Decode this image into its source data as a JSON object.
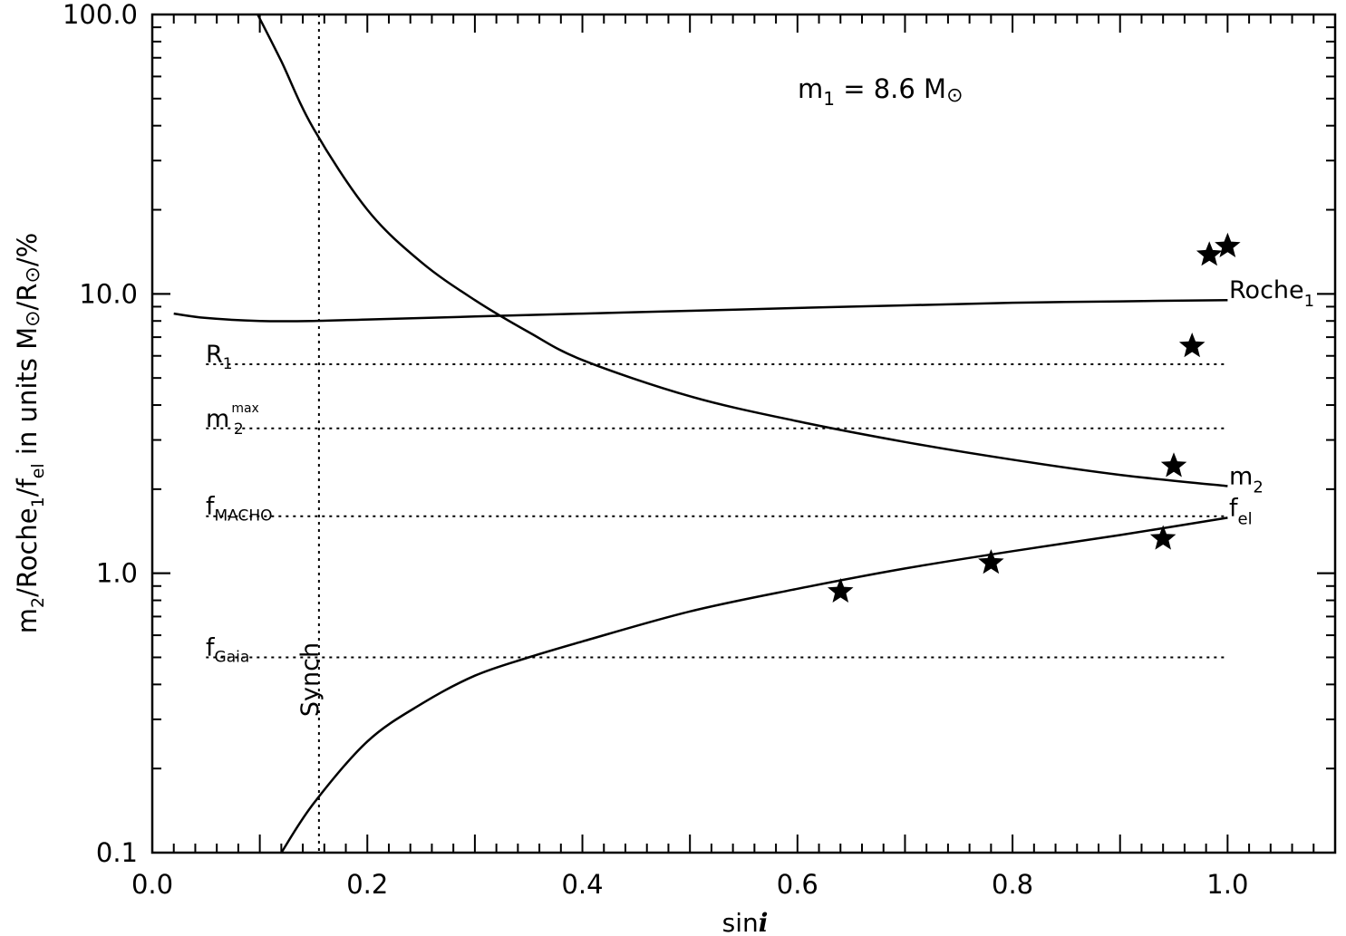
{
  "chart_data": {
    "type": "line",
    "xlabel": "sin",
    "xlabel_italic": "i",
    "ylabel_parts": [
      "m",
      "2",
      "/Roche",
      "1",
      "/f",
      "el",
      " in units M",
      "⊙",
      "/R",
      "⊙",
      "/%"
    ],
    "annotation": {
      "m": "m",
      "sub": "1",
      "rest": " = 8.6 M",
      "sun": "⊙"
    },
    "x_axis": {
      "range": [
        0.0,
        1.1
      ],
      "tick_labels": [
        "0.0",
        "0.2",
        "0.4",
        "0.6",
        "0.8",
        "1.0"
      ],
      "tick_values": [
        0.0,
        0.2,
        0.4,
        0.6,
        0.8,
        1.0
      ],
      "minor_step": 0.02
    },
    "y_axis": {
      "range": [
        0.1,
        100.0
      ],
      "scale": "log",
      "tick_labels": [
        "0.1",
        "1.0",
        "10.0",
        "100.0"
      ],
      "tick_values": [
        0.1,
        1.0,
        10.0,
        100.0
      ]
    },
    "grid": false,
    "series": [
      {
        "name": "Roche",
        "name_sub": "1",
        "x": [
          0.02,
          0.05,
          0.1,
          0.15,
          0.2,
          0.3,
          0.4,
          0.5,
          0.6,
          0.7,
          0.8,
          0.9,
          1.0
        ],
        "y": [
          8.5,
          8.2,
          8.0,
          8.0,
          8.1,
          8.3,
          8.5,
          8.7,
          8.9,
          9.1,
          9.3,
          9.4,
          9.5
        ]
      },
      {
        "name": "m",
        "name_sub": "2",
        "x": [
          0.098,
          0.12,
          0.15,
          0.2,
          0.25,
          0.3,
          0.35,
          0.4,
          0.5,
          0.6,
          0.7,
          0.8,
          0.9,
          1.0
        ],
        "y": [
          100.0,
          68.0,
          39.0,
          20.0,
          13.0,
          9.5,
          7.3,
          5.8,
          4.3,
          3.5,
          2.95,
          2.55,
          2.25,
          2.05
        ]
      },
      {
        "name": "f",
        "name_sub": "el",
        "x": [
          0.12,
          0.15,
          0.2,
          0.25,
          0.3,
          0.35,
          0.4,
          0.5,
          0.6,
          0.7,
          0.8,
          0.9,
          1.0
        ],
        "y": [
          0.1,
          0.15,
          0.25,
          0.34,
          0.43,
          0.5,
          0.57,
          0.73,
          0.88,
          1.04,
          1.2,
          1.37,
          1.58
        ]
      }
    ],
    "reference_lines": [
      {
        "label": "R",
        "sub": "1",
        "sup": "",
        "y": 5.6
      },
      {
        "label": "m",
        "sub": "2",
        "sup": "max",
        "y": 3.3
      },
      {
        "label": "f",
        "sub": "MACHO",
        "sup": "",
        "y": 1.6
      },
      {
        "label": "f",
        "sub": "Gaia",
        "sup": "",
        "y": 0.5
      }
    ],
    "vertical_line": {
      "label": "Synch",
      "x": 0.155
    },
    "stars": [
      {
        "x": 0.64,
        "y": 0.86
      },
      {
        "x": 0.78,
        "y": 1.09
      },
      {
        "x": 0.94,
        "y": 1.33
      },
      {
        "x": 0.95,
        "y": 2.42
      },
      {
        "x": 0.967,
        "y": 6.5
      },
      {
        "x": 0.983,
        "y": 13.8
      },
      {
        "x": 1.0,
        "y": 14.8
      }
    ]
  }
}
